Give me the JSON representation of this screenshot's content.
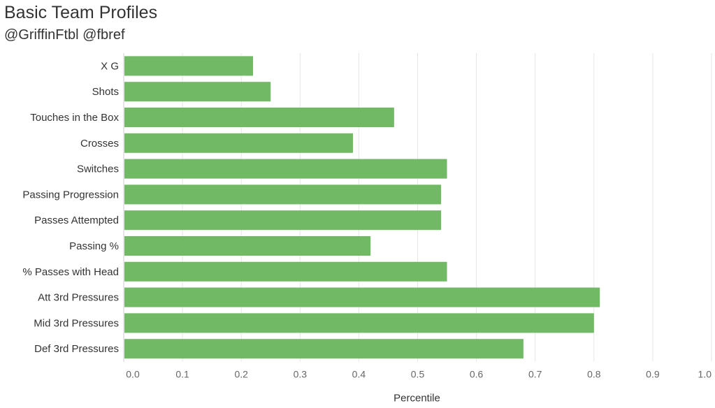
{
  "header": {
    "title": "Basic Team Profiles",
    "subtitle": "@GriffinFtbl @fbref"
  },
  "colors": {
    "bar": "#72b966",
    "grid": "#e6e6e6"
  },
  "chart_data": {
    "type": "bar",
    "orientation": "horizontal",
    "title": "Basic Team Profiles",
    "subtitle": "@GriffinFtbl @fbref",
    "xlabel": "Percentile",
    "ylabel": "",
    "xlim": [
      0,
      1.0
    ],
    "xticks": [
      "0.0",
      "0.1",
      "0.2",
      "0.3",
      "0.4",
      "0.5",
      "0.6",
      "0.7",
      "0.8",
      "0.9",
      "1.0"
    ],
    "grid": "vertical",
    "categories": [
      "X G",
      "Shots",
      "Touches in the Box",
      "Crosses",
      "Switches",
      "Passing Progression",
      "Passes Attempted",
      "Passing %",
      "% Passes with Head",
      "Att 3rd Pressures",
      "Mid 3rd Pressures",
      "Def 3rd Pressures"
    ],
    "values": [
      0.22,
      0.25,
      0.46,
      0.39,
      0.55,
      0.54,
      0.54,
      0.42,
      0.55,
      0.81,
      0.8,
      0.68
    ]
  }
}
